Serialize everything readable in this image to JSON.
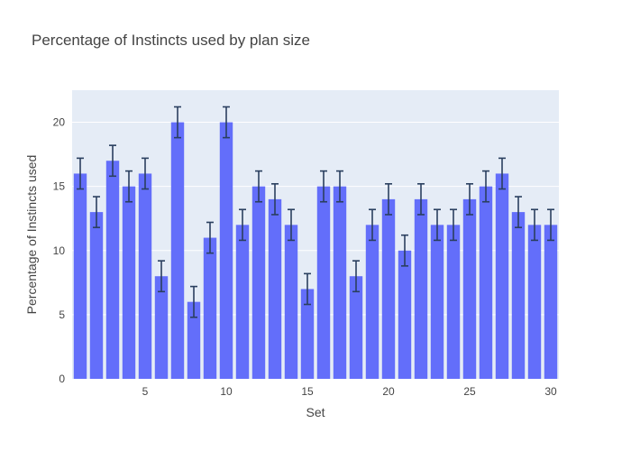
{
  "chart_data": {
    "type": "bar",
    "title": "Percentage of Instincts used by plan size",
    "xlabel": "Set",
    "ylabel": "Percentage of Instincts used",
    "x": [
      1,
      2,
      3,
      4,
      5,
      6,
      7,
      8,
      9,
      10,
      11,
      12,
      13,
      14,
      15,
      16,
      17,
      18,
      19,
      20,
      21,
      22,
      23,
      24,
      25,
      26,
      27,
      28,
      29,
      30
    ],
    "values": [
      16,
      13,
      17,
      15,
      16,
      8,
      20,
      6,
      11,
      20,
      12,
      15,
      14,
      12,
      7,
      15,
      15,
      8,
      12,
      14,
      10,
      14,
      12,
      12,
      14,
      15,
      16,
      13,
      12,
      12
    ],
    "error": [
      1.2,
      1.2,
      1.2,
      1.2,
      1.2,
      1.2,
      1.2,
      1.2,
      1.2,
      1.2,
      1.2,
      1.2,
      1.2,
      1.2,
      1.2,
      1.2,
      1.2,
      1.2,
      1.2,
      1.2,
      1.2,
      1.2,
      1.2,
      1.2,
      1.2,
      1.2,
      1.2,
      1.2,
      1.2,
      1.2
    ],
    "xticks": [
      5,
      10,
      15,
      20,
      25,
      30
    ],
    "yticks": [
      0,
      5,
      10,
      15,
      20
    ],
    "xlim": [
      0.5,
      30.5
    ],
    "ylim": [
      0,
      22.5
    ],
    "grid": true,
    "legend": "none",
    "colors": {
      "bar": "#636efa",
      "error": "#2a3f5f",
      "plot_bg": "#e5ecf6",
      "grid": "#ffffff",
      "text": "#444444"
    }
  }
}
